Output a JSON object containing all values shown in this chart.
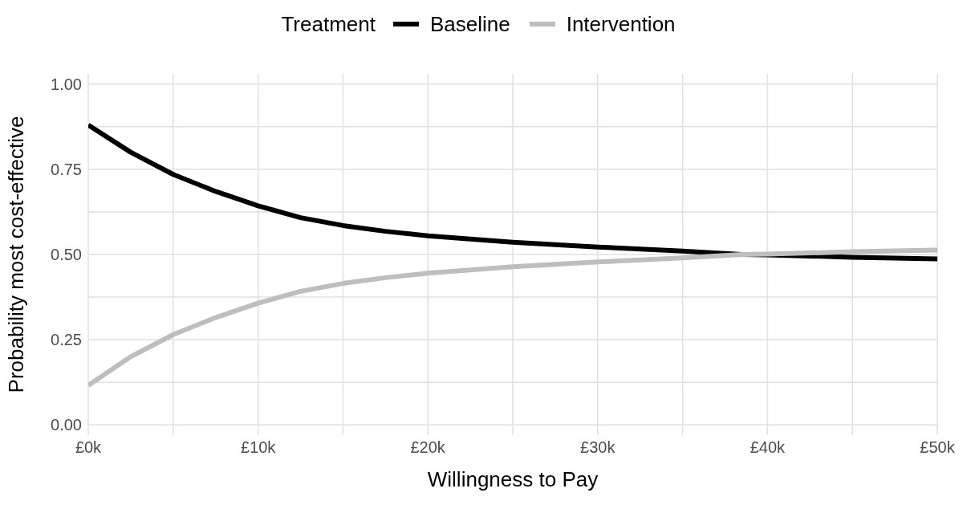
{
  "chart_data": {
    "type": "line",
    "xlabel": "Willingness to Pay",
    "ylabel": "Probability most cost-effective",
    "legend_title": "Treatment",
    "legend": "top",
    "grid": true,
    "marker": "none",
    "line_style": "solid",
    "x": [
      0,
      2500,
      5000,
      7500,
      10000,
      12500,
      15000,
      17500,
      20000,
      25000,
      30000,
      35000,
      38500,
      40000,
      45000,
      50000
    ],
    "series": [
      {
        "name": "Baseline",
        "color": "#000000",
        "values": [
          0.88,
          0.8,
          0.735,
          0.685,
          0.643,
          0.608,
          0.585,
          0.568,
          0.555,
          0.536,
          0.522,
          0.51,
          0.5,
          0.499,
          0.492,
          0.487
        ]
      },
      {
        "name": "Intervention",
        "color": "#bebebe",
        "values": [
          0.116,
          0.2,
          0.265,
          0.315,
          0.357,
          0.392,
          0.415,
          0.432,
          0.445,
          0.464,
          0.478,
          0.49,
          0.5,
          0.501,
          0.508,
          0.513
        ]
      }
    ],
    "xlim": [
      0,
      50000
    ],
    "xticks": [
      {
        "value": 0,
        "label": "£0k"
      },
      {
        "value": 5000,
        "label": null
      },
      {
        "value": 10000,
        "label": "£10k"
      },
      {
        "value": 15000,
        "label": null
      },
      {
        "value": 20000,
        "label": "£20k"
      },
      {
        "value": 25000,
        "label": null
      },
      {
        "value": 30000,
        "label": "£30k"
      },
      {
        "value": 35000,
        "label": null
      },
      {
        "value": 40000,
        "label": "£40k"
      },
      {
        "value": 45000,
        "label": null
      },
      {
        "value": 50000,
        "label": "£50k"
      }
    ],
    "ylim": [
      -0.03,
      1.03
    ],
    "yticks": [
      {
        "value": 0,
        "label": "0.00"
      },
      {
        "value": 0.125,
        "label": null
      },
      {
        "value": 0.25,
        "label": "0.25"
      },
      {
        "value": 0.375,
        "label": null
      },
      {
        "value": 0.5,
        "label": "0.50"
      },
      {
        "value": 0.625,
        "label": null
      },
      {
        "value": 0.75,
        "label": "0.75"
      },
      {
        "value": 0.875,
        "label": null
      },
      {
        "value": 1,
        "label": "1.00"
      }
    ]
  }
}
